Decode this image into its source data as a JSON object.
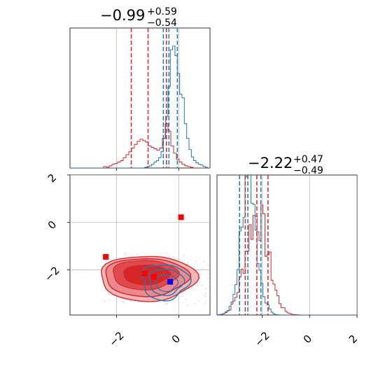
{
  "chart_data": {
    "type": "corner",
    "panels": {
      "hist_x": {
        "type": "histogram",
        "xlim": [
          -3.5,
          1.0
        ],
        "title": {
          "main": "−0.99",
          "plus": "+0.59",
          "minus": "−0.54"
        },
        "red_quantiles": [
          -1.53,
          -0.99,
          -0.4
        ],
        "blue_quantiles": [
          -0.5,
          -0.32,
          -0.05
        ],
        "red_step_y": [
          0,
          0,
          0,
          0,
          0,
          0,
          0,
          0,
          0,
          0,
          0,
          0,
          2,
          1,
          3,
          5,
          6,
          8,
          10,
          14,
          18,
          22,
          27,
          32,
          36,
          39,
          37,
          35,
          30,
          28,
          26,
          24,
          27,
          40,
          60,
          50,
          30,
          20,
          12,
          8,
          5,
          3,
          2,
          1,
          0,
          0,
          0,
          0,
          0,
          0
        ],
        "blue_step_y": [
          0,
          0,
          0,
          0,
          0,
          0,
          0,
          0,
          0,
          0,
          0,
          0,
          0,
          0,
          0,
          0,
          0,
          0,
          0,
          0,
          0,
          0,
          0,
          0,
          0,
          0,
          0,
          0,
          0,
          0,
          0,
          0,
          1,
          2,
          3,
          5,
          8,
          10,
          14,
          22,
          40,
          70,
          110,
          160,
          165,
          152,
          128,
          100,
          95,
          60,
          40,
          25,
          15,
          10,
          7,
          5,
          4,
          2,
          1,
          0
        ]
      },
      "scatter_xy": {
        "type": "contour",
        "xlim": [
          -3.5,
          1.0
        ],
        "ylim": [
          -3.9,
          2.0
        ],
        "xticks": [
          "−2",
          "0"
        ],
        "yticks": [
          "−2",
          "0",
          "2"
        ],
        "red_squares": [
          [
            -2.35,
            -1.45
          ],
          [
            0.07,
            0.22
          ],
          [
            -1.1,
            -2.15
          ],
          [
            -0.8,
            -2.3
          ]
        ],
        "blue_square": [
          -0.28,
          -2.5
        ]
      },
      "hist_y": {
        "type": "histogram",
        "xlim": [
          -3.9,
          2.0
        ],
        "xticks": [
          "−2",
          "0",
          "2"
        ],
        "title": {
          "main": "−2.22",
          "plus": "+0.47",
          "minus": "−0.49"
        },
        "red_quantiles": [
          -2.71,
          -2.22,
          -1.75
        ],
        "blue_quantiles": [
          -2.95,
          -2.6,
          -2.05
        ]
      }
    }
  },
  "colors": {
    "red": "#d62728",
    "blue": "#1f77b4",
    "square_red": "#ff0000",
    "square_blue": "#0000ff",
    "grid": "#b0b0b0"
  }
}
